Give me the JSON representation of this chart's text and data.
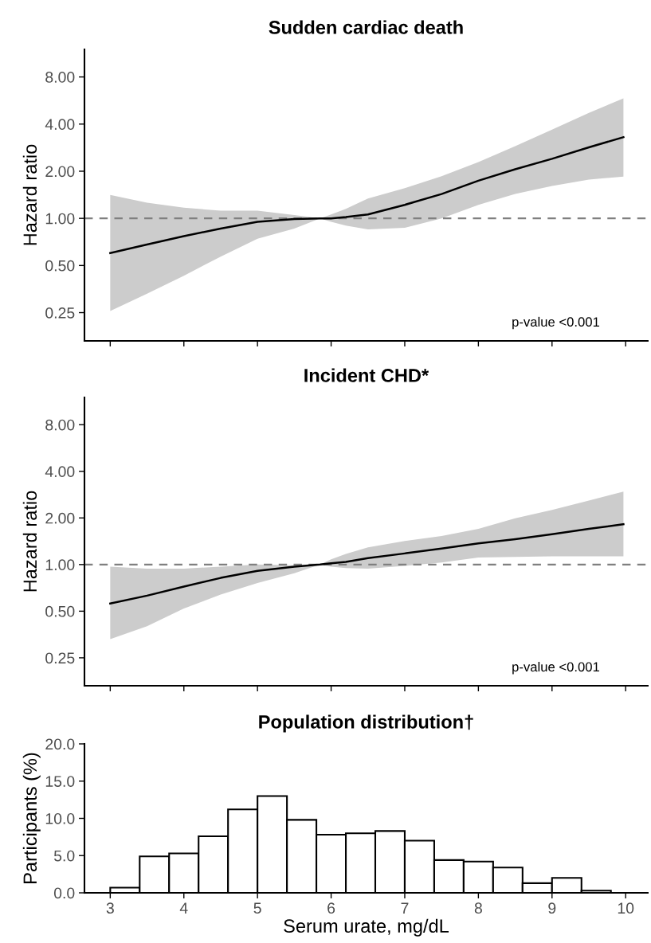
{
  "chart_data": [
    {
      "type": "line",
      "title": "Sudden cardiac death",
      "ylabel": "Hazard ratio",
      "log": "y",
      "tick_labels": "y",
      "grid": false,
      "line_style": "solid",
      "marker": "none",
      "x": [
        3,
        3.5,
        4,
        4.5,
        5,
        5.5,
        5.85,
        6,
        6.2,
        6.5,
        7,
        7.5,
        8,
        8.5,
        9,
        9.5,
        9.97
      ],
      "series": [
        {
          "color": "#000000",
          "values": [
            0.6,
            0.68,
            0.77,
            0.86,
            0.95,
            0.99,
            1.0,
            1.0,
            1.02,
            1.06,
            1.22,
            1.43,
            1.74,
            2.06,
            2.4,
            2.84,
            3.3
          ],
          "lower": [
            0.256,
            0.33,
            0.43,
            0.57,
            0.74,
            0.86,
            1.0,
            0.95,
            0.9,
            0.85,
            0.87,
            1.0,
            1.22,
            1.43,
            1.61,
            1.77,
            1.85
          ],
          "upper": [
            1.41,
            1.26,
            1.17,
            1.12,
            1.12,
            1.05,
            1.0,
            1.06,
            1.15,
            1.34,
            1.56,
            1.86,
            2.29,
            2.89,
            3.69,
            4.72,
            5.84
          ]
        }
      ],
      "xlim": [
        2.65,
        10.3
      ],
      "xticks": [
        3,
        4,
        5,
        6,
        7,
        8,
        9,
        10
      ],
      "ylim": [
        0.165,
        12
      ],
      "yticks": [
        {
          "value": 0.25,
          "label": "0.25"
        },
        {
          "value": 0.5,
          "label": "0.50"
        },
        {
          "value": 1,
          "label": "1.00"
        },
        {
          "value": 2,
          "label": "2.00"
        },
        {
          "value": 4,
          "label": "4.00"
        },
        {
          "value": 8,
          "label": "8.00"
        }
      ],
      "ref_lines": [
        {
          "axis": "y",
          "value": 1,
          "color": "#808080",
          "line_style": "dashed"
        }
      ],
      "annotations": [
        "p-value <0.001"
      ]
    },
    {
      "type": "line",
      "title": "Incident CHD*",
      "ylabel": "Hazard ratio",
      "log": "y",
      "tick_labels": "y",
      "grid": false,
      "line_style": "solid",
      "marker": "none",
      "x": [
        3,
        3.5,
        4,
        4.5,
        5,
        5.5,
        5.85,
        6,
        6.2,
        6.5,
        7,
        7.5,
        8,
        8.5,
        9,
        9.5,
        9.97
      ],
      "series": [
        {
          "color": "#000000",
          "values": [
            0.56,
            0.63,
            0.72,
            0.82,
            0.91,
            0.97,
            1.0,
            1.02,
            1.04,
            1.1,
            1.18,
            1.27,
            1.37,
            1.46,
            1.57,
            1.7,
            1.82
          ],
          "lower": [
            0.33,
            0.4,
            0.52,
            0.64,
            0.76,
            0.88,
            1.0,
            0.97,
            0.95,
            0.94,
            0.98,
            1.03,
            1.11,
            1.12,
            1.13,
            1.13,
            1.13
          ],
          "upper": [
            0.97,
            0.94,
            0.94,
            0.97,
            1.0,
            0.99,
            1.0,
            1.08,
            1.17,
            1.29,
            1.42,
            1.53,
            1.7,
            1.99,
            2.25,
            2.59,
            2.96
          ]
        }
      ],
      "xlim": [
        2.65,
        10.3
      ],
      "xticks": [
        3,
        4,
        5,
        6,
        7,
        8,
        9,
        10
      ],
      "ylim": [
        0.165,
        12
      ],
      "yticks": [
        {
          "value": 0.25,
          "label": "0.25"
        },
        {
          "value": 0.5,
          "label": "0.50"
        },
        {
          "value": 1,
          "label": "1.00"
        },
        {
          "value": 2,
          "label": "2.00"
        },
        {
          "value": 4,
          "label": "4.00"
        },
        {
          "value": 8,
          "label": "8.00"
        }
      ],
      "ref_lines": [
        {
          "axis": "y",
          "value": 1,
          "color": "#808080",
          "line_style": "dashed"
        }
      ],
      "annotations": [
        "p-value <0.001"
      ]
    },
    {
      "type": "histogram",
      "title": "Population distribution†",
      "xlabel": "Serum urate, mg/dL",
      "ylabel": "Participants (%)",
      "grid": false,
      "color": "#ffffff",
      "bins": [
        3.0,
        3.4,
        3.8,
        4.2,
        4.6,
        5.0,
        5.4,
        5.8,
        6.2,
        6.6,
        7.0,
        7.4,
        7.8,
        8.2,
        8.6,
        9.0,
        9.4,
        9.8
      ],
      "values": [
        0.7,
        4.9,
        5.3,
        7.6,
        11.2,
        13.0,
        9.8,
        7.8,
        8.0,
        8.3,
        7.0,
        4.4,
        4.2,
        3.4,
        1.3,
        2.0,
        0.3
      ],
      "xlim": [
        2.65,
        10.3
      ],
      "xticks": [
        3,
        4,
        5,
        6,
        7,
        8,
        9,
        10
      ],
      "ylim": [
        0,
        20
      ],
      "yticks": [
        {
          "value": 0,
          "label": "0.0"
        },
        {
          "value": 5,
          "label": "5.0"
        },
        {
          "value": 10,
          "label": "10.0"
        },
        {
          "value": 15,
          "label": "15.0"
        },
        {
          "value": 20,
          "label": "20.0"
        }
      ]
    }
  ]
}
